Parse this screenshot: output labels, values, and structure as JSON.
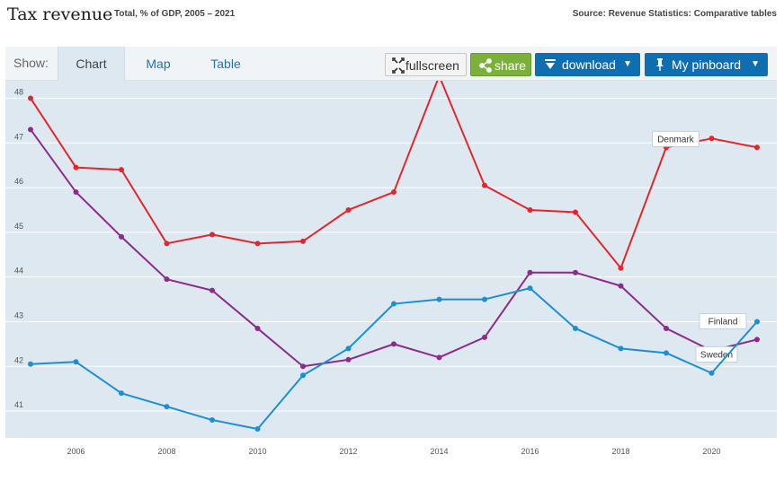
{
  "header": {
    "title": "Tax revenue",
    "subtitle": "Total, % of GDP, 2005 – 2021",
    "source": "Source: Revenue Statistics: Comparative tables"
  },
  "toolbar": {
    "show_label": "Show:",
    "tabs": [
      {
        "label": "Chart",
        "active": true
      },
      {
        "label": "Map",
        "active": false
      },
      {
        "label": "Table",
        "active": false
      }
    ],
    "fullscreen_label": "fullscreen",
    "share_label": "share",
    "download_label": "download",
    "pinboard_label": "My pinboard",
    "icons": {
      "fullscreen": "expand-arrows-icon",
      "share": "share-icon",
      "download": "download-arrow-icon",
      "pinboard": "pin-icon",
      "dropdown": "caret-down-icon"
    },
    "colors": {
      "share": "#7bb13b",
      "primary": "#0f6eb0"
    }
  },
  "chart_data": {
    "type": "line",
    "x": [
      2005,
      2006,
      2007,
      2008,
      2009,
      2010,
      2011,
      2012,
      2013,
      2014,
      2015,
      2016,
      2017,
      2018,
      2019,
      2020,
      2021
    ],
    "x_ticks": [
      "2006",
      "2008",
      "2010",
      "2012",
      "2014",
      "2016",
      "2018",
      "2020"
    ],
    "y_ticks": [
      "41",
      "42",
      "43",
      "44",
      "45",
      "46",
      "47",
      "48"
    ],
    "ylim": [
      40.6,
      48.9
    ],
    "grid": true,
    "background": "#dde8f1",
    "series": [
      {
        "name": "Denmark",
        "color": "#e3262b",
        "label_at_index": 15,
        "values": [
          48.0,
          46.45,
          46.4,
          44.75,
          44.95,
          44.75,
          44.8,
          45.5,
          45.9,
          48.5,
          46.05,
          45.5,
          45.45,
          44.2,
          46.9,
          47.1,
          46.9
        ]
      },
      {
        "name": "Sweden",
        "color": "#8b2b8c",
        "label_at_index": 16,
        "values": [
          47.3,
          45.9,
          44.9,
          43.95,
          43.7,
          42.85,
          42.0,
          42.15,
          42.5,
          42.2,
          42.65,
          44.1,
          44.1,
          43.8,
          42.85,
          42.35,
          42.6
        ]
      },
      {
        "name": "Finland",
        "color": "#1b8fd4",
        "label_at_index": 16,
        "values": [
          42.05,
          42.1,
          41.4,
          41.1,
          40.8,
          40.6,
          41.8,
          42.4,
          43.4,
          43.5,
          43.5,
          43.75,
          42.85,
          42.4,
          42.3,
          41.85,
          43.0
        ]
      }
    ]
  }
}
